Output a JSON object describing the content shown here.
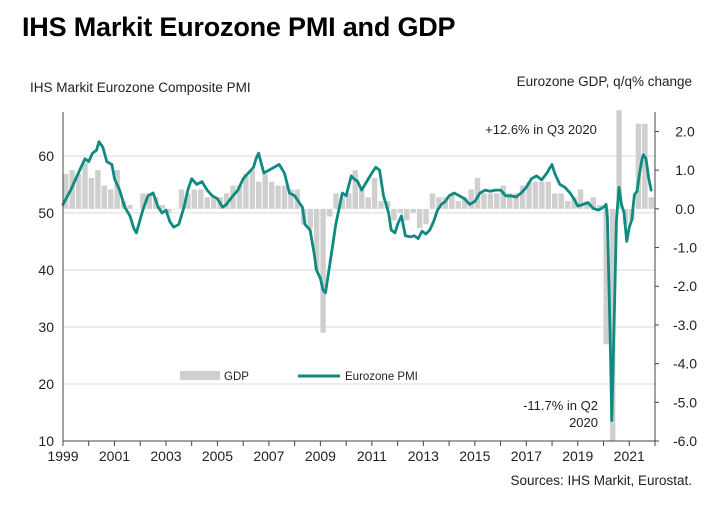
{
  "page_title": "IHS Markit Eurozone PMI and GDP",
  "chart_data": {
    "type": "bar+line",
    "title": "IHS Markit Eurozone PMI and GDP",
    "left_axis_title": "IHS Markit Eurozone  Composite PMI",
    "right_axis_title": "Eurozone  GDP,  q/q% change",
    "source": "Sources: IHS Markit, Eurostat.",
    "left_axis": {
      "min": 10,
      "max": 67,
      "ticks": [
        "10",
        "20",
        "30",
        "40",
        "50",
        "60"
      ],
      "tick_values": [
        10,
        20,
        30,
        40,
        50,
        60
      ]
    },
    "right_axis": {
      "min": -6.0,
      "max": 2.4,
      "ticks": [
        "-6.0",
        "-5.0",
        "-4.0",
        "-3.0",
        "-2.0",
        "-1.0",
        "0.0",
        "1.0",
        "2.0"
      ],
      "tick_values": [
        -6,
        -5,
        -4,
        -3,
        -2,
        -1,
        0,
        1,
        2
      ]
    },
    "x_axis": {
      "min": 1999.0,
      "max": 2022.0,
      "ticks": [
        "1999",
        "2001",
        "2003",
        "2005",
        "2007",
        "2009",
        "2011",
        "2013",
        "2015",
        "2017",
        "2019",
        "2021"
      ],
      "tick_values": [
        1999,
        2001,
        2003,
        2005,
        2007,
        2009,
        2011,
        2013,
        2015,
        2017,
        2019,
        2021
      ]
    },
    "legend": [
      {
        "name": "GDP",
        "color": "#cfcfcf",
        "kind": "bar"
      },
      {
        "name": "Eurozone PMI",
        "color": "#0f8a80",
        "kind": "line"
      }
    ],
    "gdp_series": {
      "name": "GDP",
      "unit": "q/q % change",
      "color": "#cfcfcf",
      "x": [
        1999.0,
        1999.25,
        1999.5,
        1999.75,
        2000.0,
        2000.25,
        2000.5,
        2000.75,
        2001.0,
        2001.25,
        2001.5,
        2001.75,
        2002.0,
        2002.25,
        2002.5,
        2002.75,
        2003.0,
        2003.25,
        2003.5,
        2003.75,
        2004.0,
        2004.25,
        2004.5,
        2004.75,
        2005.0,
        2005.25,
        2005.5,
        2005.75,
        2006.0,
        2006.25,
        2006.5,
        2006.75,
        2007.0,
        2007.25,
        2007.5,
        2007.75,
        2008.0,
        2008.25,
        2008.5,
        2008.75,
        2009.0,
        2009.25,
        2009.5,
        2009.75,
        2010.0,
        2010.25,
        2010.5,
        2010.75,
        2011.0,
        2011.25,
        2011.5,
        2011.75,
        2012.0,
        2012.25,
        2012.5,
        2012.75,
        2013.0,
        2013.25,
        2013.5,
        2013.75,
        2014.0,
        2014.25,
        2014.5,
        2014.75,
        2015.0,
        2015.25,
        2015.5,
        2015.75,
        2016.0,
        2016.25,
        2016.5,
        2016.75,
        2017.0,
        2017.25,
        2017.5,
        2017.75,
        2018.0,
        2018.25,
        2018.5,
        2018.75,
        2019.0,
        2019.25,
        2019.5,
        2019.75,
        2020.0,
        2020.25,
        2020.5,
        2020.75,
        2021.0,
        2021.25,
        2021.5,
        2021.75
      ],
      "values": [
        0.9,
        1.0,
        0.9,
        1.2,
        0.8,
        1.0,
        0.6,
        0.5,
        1.0,
        0.2,
        0.1,
        0.0,
        0.4,
        0.4,
        0.3,
        0.1,
        -0.1,
        0.0,
        0.5,
        0.4,
        0.5,
        0.5,
        0.3,
        0.3,
        0.3,
        0.4,
        0.6,
        0.6,
        0.9,
        1.0,
        0.7,
        0.9,
        0.7,
        0.6,
        0.6,
        0.5,
        0.5,
        -0.4,
        -0.5,
        -1.6,
        -3.2,
        -0.2,
        0.4,
        0.3,
        0.4,
        1.0,
        0.5,
        0.3,
        0.8,
        0.2,
        0.2,
        -0.3,
        -0.1,
        -0.3,
        -0.1,
        -0.5,
        -0.4,
        0.4,
        0.3,
        0.3,
        0.4,
        0.2,
        0.3,
        0.5,
        0.8,
        0.4,
        0.4,
        0.4,
        0.6,
        0.4,
        0.4,
        0.6,
        0.7,
        0.7,
        0.7,
        0.7,
        0.4,
        0.4,
        0.2,
        0.3,
        0.5,
        0.2,
        0.3,
        0.1,
        -3.5,
        -11.7,
        12.6,
        -0.4,
        -0.3,
        2.2,
        2.2,
        0.3
      ]
    },
    "pmi_series": {
      "name": "Eurozone PMI",
      "color": "#0f8a80",
      "points": [
        [
          1999.0,
          51.5
        ],
        [
          1999.3,
          54
        ],
        [
          1999.6,
          57
        ],
        [
          1999.85,
          59.5
        ],
        [
          2000.0,
          59
        ],
        [
          2000.15,
          60.5
        ],
        [
          2000.3,
          61
        ],
        [
          2000.4,
          62.5
        ],
        [
          2000.55,
          61.5
        ],
        [
          2000.7,
          59
        ],
        [
          2000.9,
          58.5
        ],
        [
          2001.0,
          56
        ],
        [
          2001.2,
          54
        ],
        [
          2001.4,
          51
        ],
        [
          2001.6,
          49.5
        ],
        [
          2001.75,
          47.3
        ],
        [
          2001.85,
          46.5
        ],
        [
          2002.1,
          50.5
        ],
        [
          2002.3,
          53
        ],
        [
          2002.5,
          53.5
        ],
        [
          2002.7,
          51
        ],
        [
          2002.85,
          50
        ],
        [
          2003.0,
          50.5
        ],
        [
          2003.15,
          48.5
        ],
        [
          2003.3,
          47.5
        ],
        [
          2003.5,
          48
        ],
        [
          2003.7,
          51
        ],
        [
          2003.85,
          54
        ],
        [
          2004.0,
          56
        ],
        [
          2004.2,
          55
        ],
        [
          2004.4,
          55.5
        ],
        [
          2004.6,
          54
        ],
        [
          2004.8,
          53
        ],
        [
          2005.0,
          52.5
        ],
        [
          2005.2,
          51
        ],
        [
          2005.35,
          51.5
        ],
        [
          2005.6,
          53
        ],
        [
          2005.8,
          54
        ],
        [
          2006.0,
          56
        ],
        [
          2006.2,
          57
        ],
        [
          2006.4,
          58
        ],
        [
          2006.5,
          59.5
        ],
        [
          2006.6,
          60.5
        ],
        [
          2006.8,
          57
        ],
        [
          2007.0,
          57.5
        ],
        [
          2007.2,
          58
        ],
        [
          2007.4,
          58.5
        ],
        [
          2007.6,
          57
        ],
        [
          2007.8,
          53.5
        ],
        [
          2008.0,
          53
        ],
        [
          2008.15,
          52
        ],
        [
          2008.3,
          51
        ],
        [
          2008.4,
          48
        ],
        [
          2008.6,
          47
        ],
        [
          2008.75,
          43
        ],
        [
          2008.85,
          40
        ],
        [
          2009.0,
          38.5
        ],
        [
          2009.1,
          36.5
        ],
        [
          2009.2,
          36
        ],
        [
          2009.4,
          42
        ],
        [
          2009.6,
          48
        ],
        [
          2009.85,
          53.5
        ],
        [
          2010.0,
          53
        ],
        [
          2010.2,
          56.5
        ],
        [
          2010.3,
          56
        ],
        [
          2010.45,
          55.5
        ],
        [
          2010.6,
          54
        ],
        [
          2010.8,
          55.5
        ],
        [
          2011.0,
          57
        ],
        [
          2011.15,
          58
        ],
        [
          2011.3,
          57.5
        ],
        [
          2011.45,
          53
        ],
        [
          2011.65,
          50
        ],
        [
          2011.75,
          47
        ],
        [
          2011.9,
          46.5
        ],
        [
          2012.0,
          48
        ],
        [
          2012.15,
          49.5
        ],
        [
          2012.3,
          46
        ],
        [
          2012.5,
          45.8
        ],
        [
          2012.65,
          46
        ],
        [
          2012.8,
          45.5
        ],
        [
          2012.95,
          46.8
        ],
        [
          2013.1,
          46.3
        ],
        [
          2013.25,
          47
        ],
        [
          2013.4,
          48.5
        ],
        [
          2013.55,
          50.5
        ],
        [
          2013.7,
          51.5
        ],
        [
          2013.85,
          52
        ],
        [
          2014.0,
          53
        ],
        [
          2014.2,
          53.5
        ],
        [
          2014.4,
          53
        ],
        [
          2014.6,
          52.5
        ],
        [
          2014.8,
          51.5
        ],
        [
          2015.0,
          52
        ],
        [
          2015.2,
          53.5
        ],
        [
          2015.4,
          54
        ],
        [
          2015.6,
          53.8
        ],
        [
          2015.8,
          54
        ],
        [
          2016.0,
          54
        ],
        [
          2016.2,
          53
        ],
        [
          2016.4,
          53
        ],
        [
          2016.6,
          52.8
        ],
        [
          2016.8,
          53.5
        ],
        [
          2017.0,
          54.5
        ],
        [
          2017.2,
          56
        ],
        [
          2017.4,
          56.5
        ],
        [
          2017.6,
          55.8
        ],
        [
          2017.8,
          57
        ],
        [
          2018.0,
          58.5
        ],
        [
          2018.1,
          57
        ],
        [
          2018.3,
          55
        ],
        [
          2018.5,
          54.5
        ],
        [
          2018.7,
          53.5
        ],
        [
          2018.85,
          52.5
        ],
        [
          2019.0,
          51.2
        ],
        [
          2019.2,
          51.5
        ],
        [
          2019.4,
          51.8
        ],
        [
          2019.6,
          50.8
        ],
        [
          2019.8,
          50.5
        ],
        [
          2020.0,
          51
        ],
        [
          2020.1,
          51.5
        ],
        [
          2020.15,
          49
        ],
        [
          2020.25,
          29.5
        ],
        [
          2020.32,
          13.6
        ],
        [
          2020.42,
          32
        ],
        [
          2020.5,
          48.5
        ],
        [
          2020.6,
          54.5
        ],
        [
          2020.7,
          51.5
        ],
        [
          2020.8,
          50
        ],
        [
          2020.9,
          45
        ],
        [
          2021.0,
          47.5
        ],
        [
          2021.1,
          48.8
        ],
        [
          2021.2,
          53.2
        ],
        [
          2021.3,
          53.8
        ],
        [
          2021.4,
          57
        ],
        [
          2021.5,
          59.5
        ],
        [
          2021.55,
          60.2
        ],
        [
          2021.65,
          59.5
        ],
        [
          2021.75,
          56.2
        ],
        [
          2021.85,
          54
        ]
      ]
    },
    "annotations": [
      {
        "text": "+12.6% in Q3 2020",
        "x": 2020.5,
        "value": 12.6,
        "series": "GDP"
      },
      {
        "text_lines": [
          "-11.7% in Q2",
          "2020"
        ],
        "x": 2020.25,
        "value": -11.7,
        "series": "GDP"
      }
    ]
  }
}
